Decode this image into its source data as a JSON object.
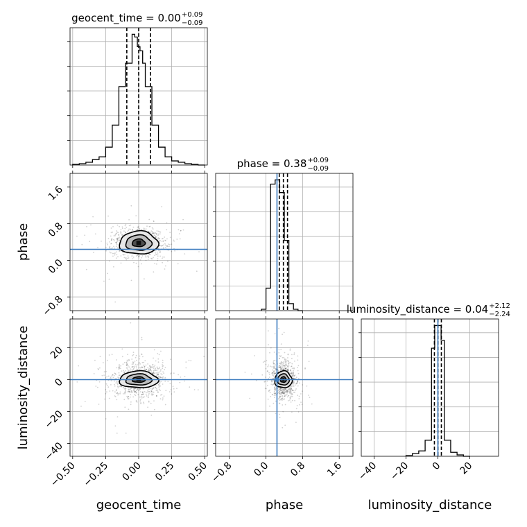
{
  "chart_data": {
    "type": "corner",
    "parameters": [
      {
        "name": "geocent_time",
        "label": "geocent_time",
        "title": {
          "main": "geocent_time = 0.00",
          "plus": "+0.09",
          "minus": "−0.09"
        },
        "range": [
          -0.52,
          0.52
        ],
        "ticks": [
          -0.5,
          -0.25,
          0.0,
          0.25,
          0.5
        ],
        "tick_labels": [
          "−0.50",
          "−0.25",
          "0.00",
          "0.25",
          "0.50"
        ],
        "median": 0.0,
        "q_low": -0.09,
        "q_high": 0.09,
        "hist": {
          "edges": [
            -0.5,
            -0.45,
            -0.4,
            -0.35,
            -0.3,
            -0.25,
            -0.2,
            -0.15,
            -0.1,
            -0.05,
            -0.03,
            -0.01,
            0.01,
            0.03,
            0.05,
            0.1,
            0.15,
            0.2,
            0.25,
            0.3,
            0.35,
            0.4,
            0.45,
            0.5
          ],
          "values": [
            0.005,
            0.01,
            0.02,
            0.04,
            0.06,
            0.13,
            0.29,
            0.57,
            0.74,
            0.95,
            0.93,
            0.86,
            0.83,
            0.74,
            0.57,
            0.29,
            0.13,
            0.06,
            0.03,
            0.02,
            0.01,
            0.005,
            0.0
          ]
        }
      },
      {
        "name": "phase",
        "label": "phase",
        "title": {
          "main": "phase = 0.38",
          "plus": "+0.09",
          "minus": "−0.09"
        },
        "range": [
          -1.1,
          1.9
        ],
        "ticks": [
          -0.8,
          0.0,
          0.8,
          1.6
        ],
        "tick_labels": [
          "−0.8",
          "0.0",
          "0.8",
          "1.6"
        ],
        "truth": 0.24,
        "median": 0.38,
        "q_low": 0.29,
        "q_high": 0.47,
        "hist": {
          "edges": [
            -0.1,
            0.0,
            0.1,
            0.2,
            0.3,
            0.4,
            0.5,
            0.6,
            0.7,
            0.8
          ],
          "values": [
            0.01,
            0.16,
            0.9,
            0.93,
            0.84,
            0.5,
            0.05,
            0.01,
            0.0
          ]
        }
      },
      {
        "name": "luminosity_distance",
        "label": "luminosity_distance",
        "title": {
          "main": "luminosity_distance = 0.04",
          "plus": "+2.12",
          "minus": "−2.24"
        },
        "range": [
          -48,
          38
        ],
        "ticks": [
          -40,
          -20,
          0,
          20
        ],
        "tick_labels": [
          "−40",
          "−20",
          "0",
          "20"
        ],
        "truth": 0.0,
        "median": 0.04,
        "q_low": -2.2,
        "q_high": 2.16,
        "hist": {
          "edges": [
            -20,
            -16,
            -12,
            -8,
            -4,
            -2,
            0,
            2,
            4,
            8,
            12,
            16,
            20
          ],
          "values": [
            0.005,
            0.02,
            0.04,
            0.12,
            0.81,
            0.98,
            0.98,
            0.87,
            0.12,
            0.03,
            0.01,
            0.0
          ]
        }
      }
    ],
    "y_axis": {
      "phase": {
        "range": [
          -1.1,
          1.9
        ],
        "ticks": [
          -0.8,
          0.0,
          0.8,
          1.6
        ],
        "tick_labels": [
          "−0.8",
          "0.0",
          "0.8",
          "1.6"
        ]
      },
      "luminosity_distance": {
        "range": [
          -48,
          38
        ],
        "ticks": [
          -40,
          -20,
          0,
          20
        ],
        "tick_labels": [
          "−40",
          "−20",
          "0",
          "20"
        ]
      }
    },
    "pairs": [
      {
        "x": "geocent_time",
        "y": "phase",
        "center": [
          0.0,
          0.38
        ],
        "sigma_x": 0.07,
        "sigma_y": 0.12,
        "h_truth": 0.24
      },
      {
        "x": "geocent_time",
        "y": "luminosity_distance",
        "center": [
          0.0,
          0.0
        ],
        "sigma_x": 0.07,
        "sigma_y": 2.5,
        "h_truth": 0.0
      },
      {
        "x": "phase",
        "y": "luminosity_distance",
        "center": [
          0.38,
          0.0
        ],
        "sigma_x": 0.09,
        "sigma_y": 2.5,
        "h_truth": 0.0,
        "v_truth": 0.24
      }
    ]
  }
}
